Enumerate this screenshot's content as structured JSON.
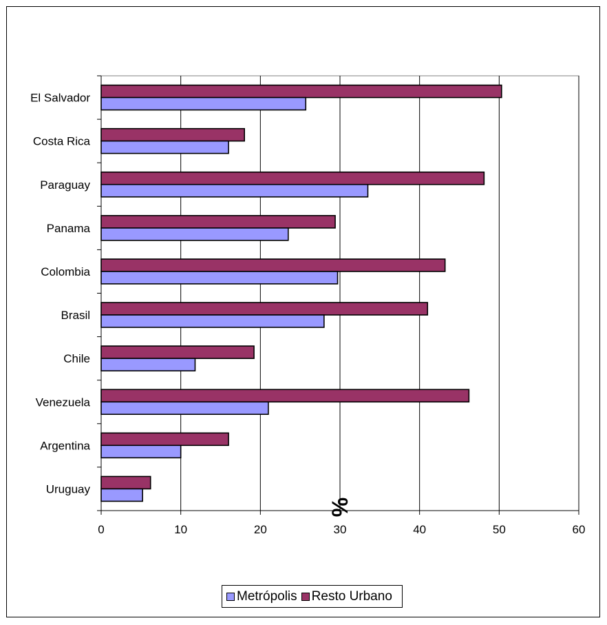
{
  "chart_data": {
    "type": "bar",
    "orientation": "horizontal",
    "categories": [
      "El Salvador",
      "Costa Rica",
      "Paraguay",
      "Panama",
      "Colombia",
      "Brasil",
      "Chile",
      "Venezuela",
      "Argentina",
      "Uruguay"
    ],
    "series": [
      {
        "name": "Resto Urbano",
        "color": "#993366",
        "values": [
          50.3,
          18.0,
          48.1,
          29.4,
          43.2,
          41.0,
          19.2,
          46.2,
          16.0,
          6.2
        ]
      },
      {
        "name": "Metrópolis",
        "color": "#9999ff",
        "values": [
          25.7,
          16.0,
          33.5,
          23.5,
          29.7,
          28.0,
          11.8,
          21.0,
          10.0,
          5.2
        ]
      }
    ],
    "xlabel": "%",
    "xlim": [
      0,
      60
    ],
    "xticks": [
      "0",
      "10",
      "20",
      "30",
      "40",
      "50",
      "60"
    ],
    "grid": "vertical",
    "legend_position": "bottom",
    "legend": [
      "Metrópolis",
      "Resto Urbano"
    ]
  }
}
